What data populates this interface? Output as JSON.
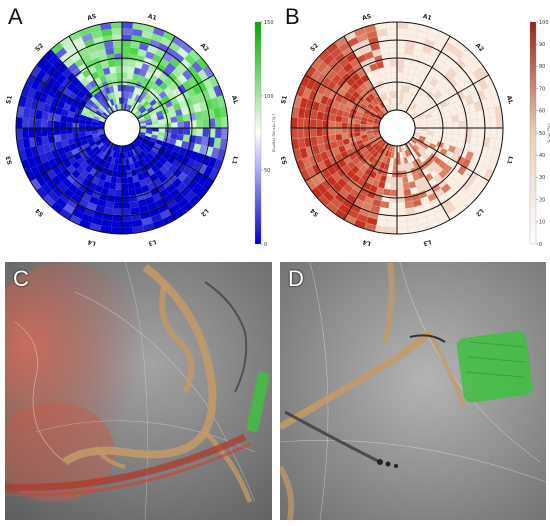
{
  "panels": [
    {
      "letter": "A",
      "segment_labels": [
        "A1",
        "A2",
        "AL",
        "L1",
        "L2",
        "L3",
        "L4",
        "S4",
        "S3",
        "S1",
        "S2",
        "AS"
      ],
      "colorbar": {
        "title": "Radial Strain [%]",
        "ticks": [
          "150",
          "100",
          "50",
          "0"
        ],
        "colors": [
          "#00aa00",
          "#ffffff",
          "#0000cc"
        ]
      }
    },
    {
      "letter": "B",
      "segment_labels": [
        "A1",
        "A2",
        "AL",
        "L1",
        "L2",
        "L3",
        "L4",
        "S4",
        "S3",
        "S1",
        "S2",
        "AS"
      ],
      "colorbar": {
        "title": "Scar [%]",
        "ticks": [
          "100",
          "90",
          "80",
          "70",
          "60",
          "50",
          "40",
          "30",
          "20",
          "10",
          "0"
        ],
        "colors": [
          "#9b2318",
          "#e8cfb8",
          "#ffffff"
        ]
      }
    },
    {
      "letter": "C"
    },
    {
      "letter": "D"
    }
  ]
}
